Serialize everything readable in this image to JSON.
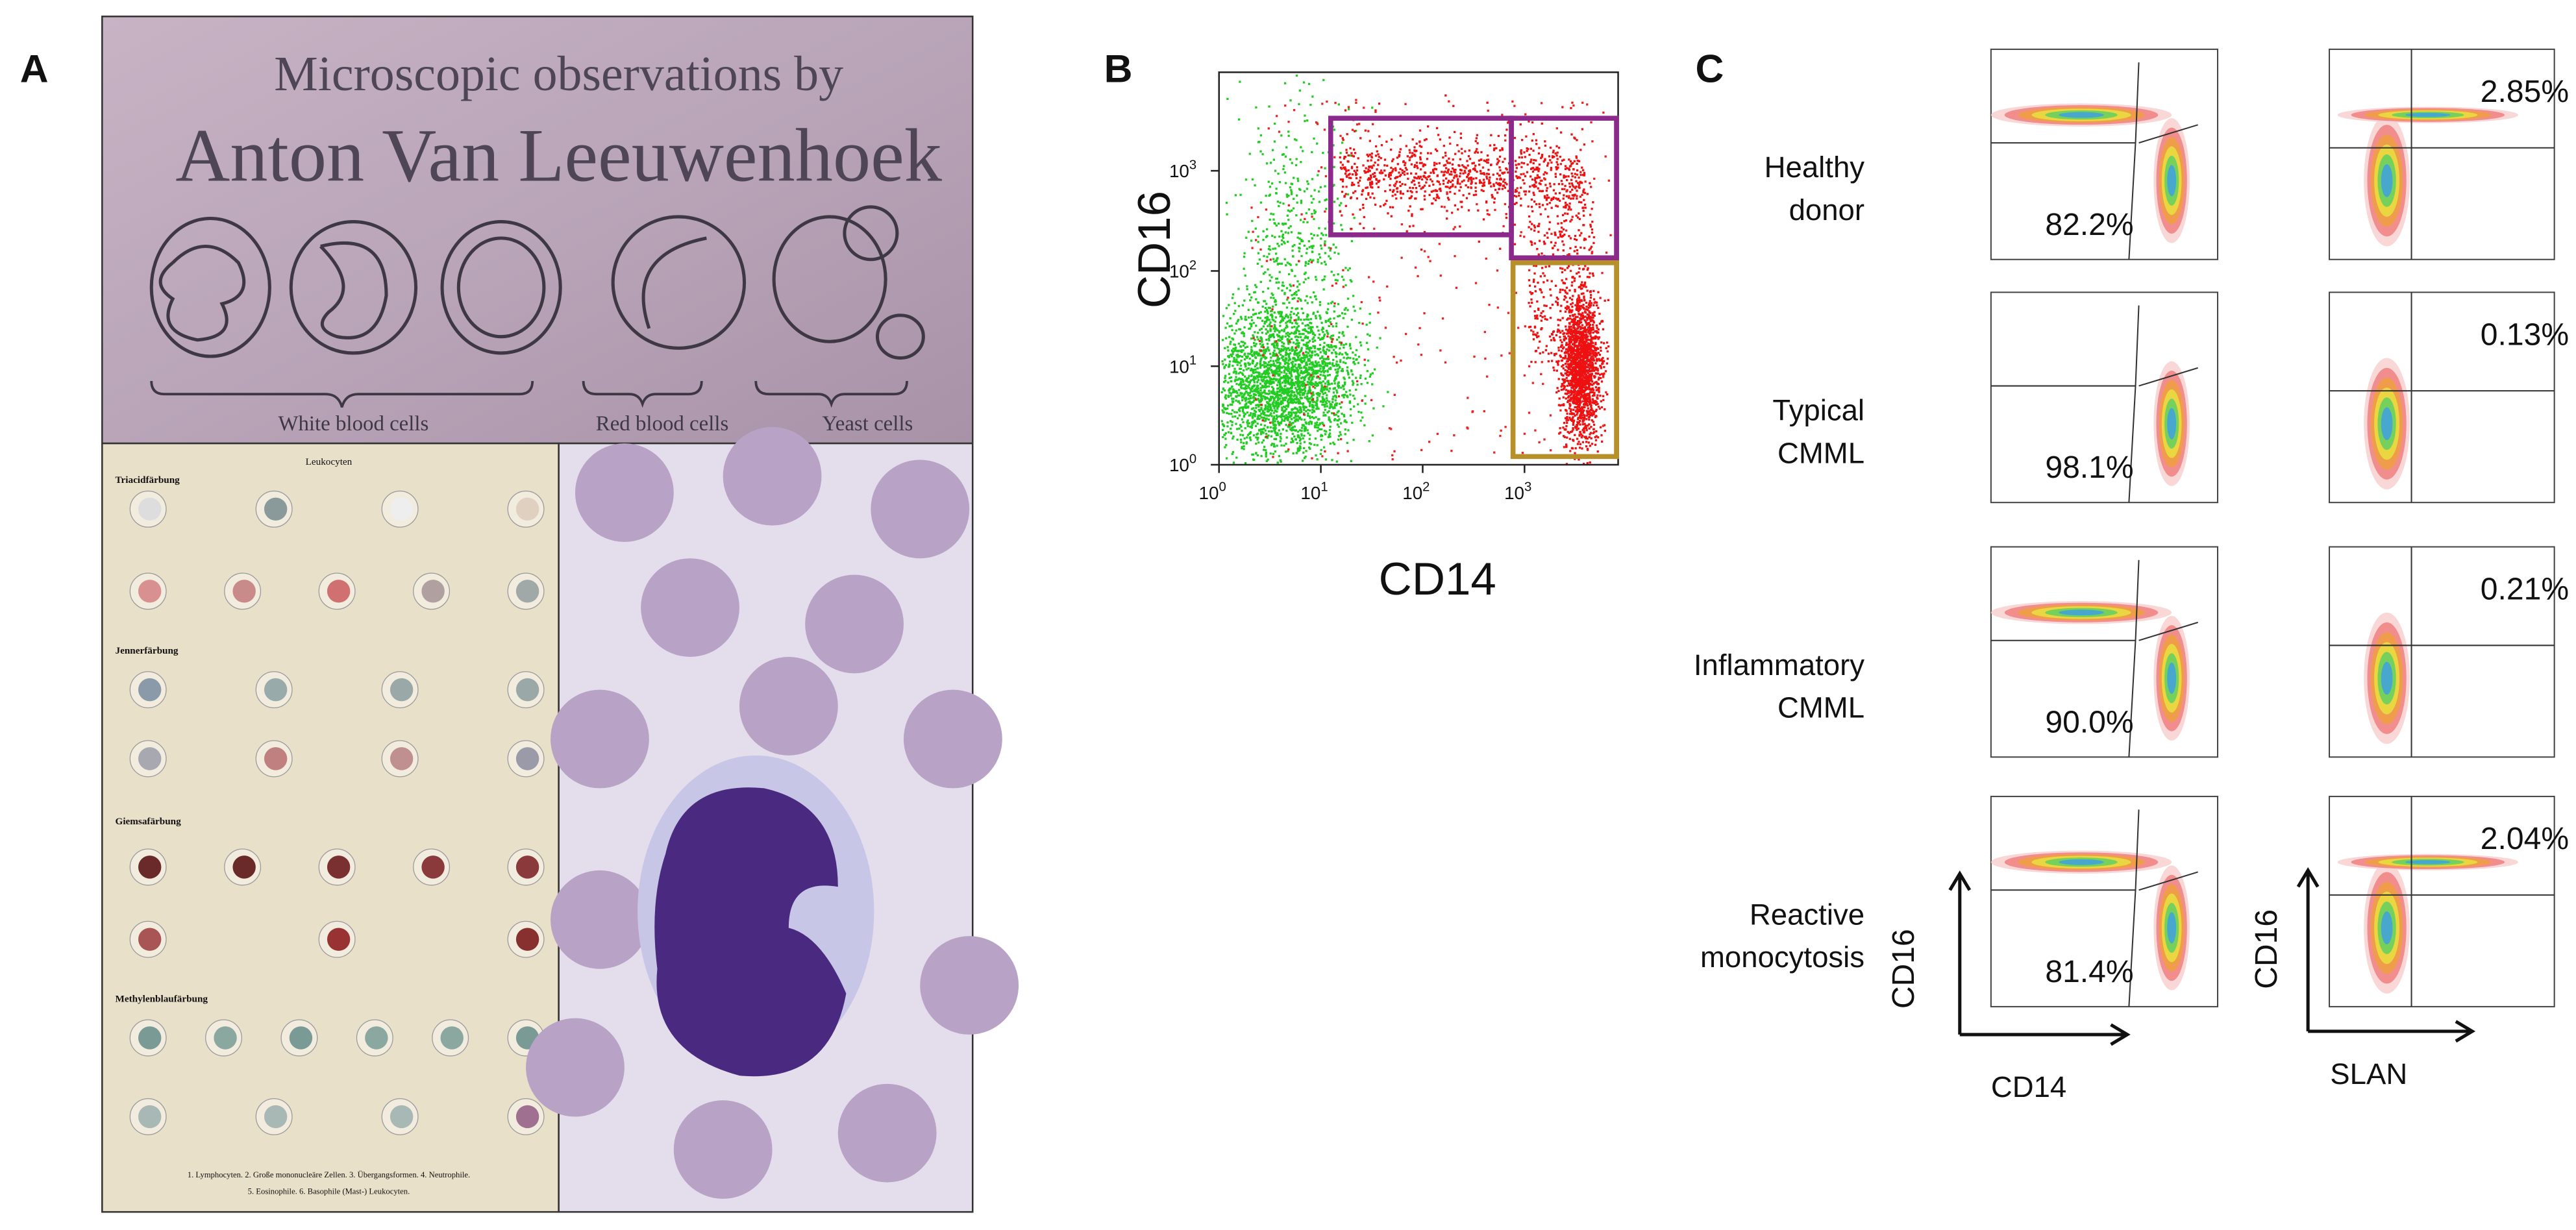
{
  "panels": {
    "A": {
      "label": "A",
      "title_line1": "Microscopic observations by",
      "title_line2": "Anton Van Leeuwenhoek",
      "groups": [
        "White blood cells",
        "Red blood cells",
        "Yeast cells"
      ],
      "plate": {
        "title": "Leukocyten",
        "sections": [
          "Triacidfärbung",
          "Jennerfärbung",
          "Giemsafärbung",
          "Methylenblaufärbung"
        ],
        "caption": [
          "1. Lymphocyten. 2. Große mononucleäre Zellen. 3. Übergangsformen. 4. Neutrophile.",
          "5. Eosinophile. 6. Basophile (Mast-) Leukocyten."
        ]
      }
    },
    "B": {
      "label": "B",
      "x_label": "CD14",
      "y_label": "CD16",
      "xticks": [
        {
          "base": "10",
          "exp": "0"
        },
        {
          "base": "10",
          "exp": "1"
        },
        {
          "base": "10",
          "exp": "2"
        },
        {
          "base": "10",
          "exp": "3"
        }
      ],
      "yticks": [
        {
          "base": "10",
          "exp": "0"
        },
        {
          "base": "10",
          "exp": "1"
        },
        {
          "base": "10",
          "exp": "2"
        },
        {
          "base": "10",
          "exp": "3"
        }
      ]
    },
    "C": {
      "label": "C",
      "y_label": "CD16",
      "x_labels": [
        "CD14",
        "SLAN"
      ],
      "rows": [
        {
          "name": [
            "Healthy",
            "donor"
          ],
          "cd14_gate": "82.2%",
          "slan_gate": "2.85%"
        },
        {
          "name": [
            "Typical",
            "CMML"
          ],
          "cd14_gate": "98.1%",
          "slan_gate": "0.13%"
        },
        {
          "name": [
            "Inflammatory",
            "CMML"
          ],
          "cd14_gate": "90.0%",
          "slan_gate": "0.21%"
        },
        {
          "name": [
            "Reactive",
            "monocytosis"
          ],
          "cd14_gate": "81.4%",
          "slan_gate": "2.04%"
        }
      ]
    }
  }
}
